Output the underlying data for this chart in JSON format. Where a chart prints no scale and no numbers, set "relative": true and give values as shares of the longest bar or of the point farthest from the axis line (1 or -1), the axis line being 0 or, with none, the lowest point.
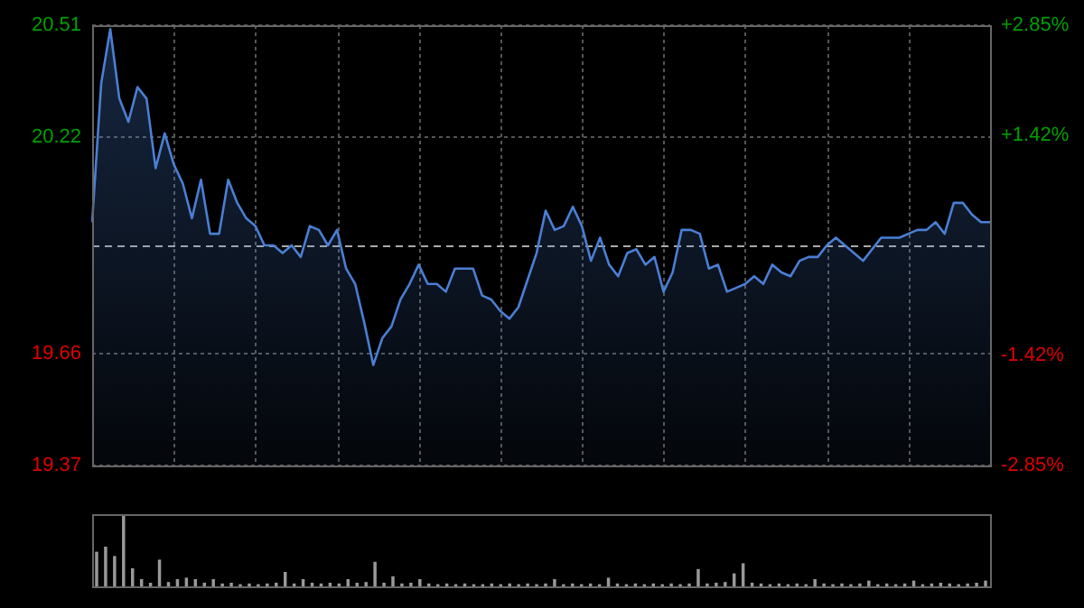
{
  "chart_data": [
    {
      "type": "area",
      "categories": [
        null,
        null,
        null,
        null,
        null,
        null,
        null,
        null,
        null,
        null,
        null,
        null,
        null,
        null,
        null,
        null,
        null,
        null,
        null,
        null,
        null,
        null,
        null,
        null,
        null,
        null,
        null,
        null,
        null,
        null,
        null,
        null,
        null,
        null,
        null,
        null,
        null,
        null,
        null,
        null,
        null,
        null,
        null,
        null,
        null,
        null,
        null,
        null,
        null,
        null,
        null,
        null,
        null,
        null,
        null,
        null,
        null,
        null,
        null,
        null,
        null,
        null,
        null,
        null,
        null,
        null,
        null,
        null,
        null,
        null,
        null,
        null,
        null,
        null,
        null,
        null,
        null,
        null,
        null,
        null,
        null,
        null,
        null,
        null,
        null,
        null,
        null,
        null,
        null,
        null,
        null,
        null,
        null,
        null,
        null,
        null,
        null,
        null,
        null,
        null
      ],
      "series": [
        {
          "color": "#4a7fd4",
          "values": [
            20.0,
            20.36,
            20.5,
            20.32,
            20.26,
            20.35,
            20.32,
            20.14,
            20.23,
            20.15,
            20.1,
            20.01,
            20.11,
            19.97,
            19.97,
            20.11,
            20.05,
            20.01,
            19.99,
            19.94,
            19.94,
            19.92,
            19.94,
            19.91,
            19.99,
            19.98,
            19.94,
            19.98,
            19.88,
            19.84,
            19.74,
            19.63,
            19.7,
            19.73,
            19.8,
            19.84,
            19.89,
            19.84,
            19.84,
            19.82,
            19.88,
            19.88,
            19.88,
            19.81,
            19.8,
            19.77,
            19.75,
            19.78,
            19.85,
            19.92,
            20.03,
            19.98,
            19.99,
            20.04,
            19.99,
            19.9,
            19.96,
            19.89,
            19.86,
            19.92,
            19.93,
            19.89,
            19.91,
            19.82,
            19.87,
            19.98,
            19.98,
            19.97,
            19.88,
            19.89,
            19.82,
            19.83,
            19.84,
            19.86,
            19.84,
            19.89,
            19.87,
            19.86,
            19.9,
            19.91,
            19.91,
            19.94,
            19.96,
            19.94,
            19.92,
            19.9,
            19.93,
            19.96,
            19.96,
            19.96,
            19.97,
            19.98,
            19.98,
            20.0,
            19.97,
            20.05,
            20.05,
            20.02,
            20.0,
            20.0
          ]
        }
      ],
      "ylim": [
        19.37,
        20.51
      ],
      "yticks": [
        19.37,
        19.66,
        20.22,
        20.51
      ],
      "y2lim": [
        -2.85,
        2.85
      ],
      "y2ticks": [
        {
          "value": -2.85,
          "label": "-2.85%"
        },
        {
          "value": -1.42,
          "label": "-1.42%"
        },
        {
          "value": 1.42,
          "label": "+1.42%"
        },
        {
          "value": 2.85,
          "label": "+2.85%"
        }
      ],
      "ref_lines": [
        {
          "axis": "y",
          "value": 19.94,
          "color": "#aaaaaa",
          "line_style": "dashed"
        }
      ],
      "grid": true,
      "legend": false
    },
    {
      "type": "bar",
      "relative": true,
      "categories": [
        null,
        null,
        null,
        null,
        null,
        null,
        null,
        null,
        null,
        null,
        null,
        null,
        null,
        null,
        null,
        null,
        null,
        null,
        null,
        null,
        null,
        null,
        null,
        null,
        null,
        null,
        null,
        null,
        null,
        null,
        null,
        null,
        null,
        null,
        null,
        null,
        null,
        null,
        null,
        null,
        null,
        null,
        null,
        null,
        null,
        null,
        null,
        null,
        null,
        null,
        null,
        null,
        null,
        null,
        null,
        null,
        null,
        null,
        null,
        null,
        null,
        null,
        null,
        null,
        null,
        null,
        null,
        null,
        null,
        null,
        null,
        null,
        null,
        null,
        null,
        null,
        null,
        null,
        null,
        null,
        null,
        null,
        null,
        null,
        null,
        null,
        null,
        null,
        null,
        null,
        null,
        null,
        null,
        null,
        null,
        null,
        null,
        null,
        null,
        null
      ],
      "series": [
        {
          "color": "#999999",
          "values": [
            0.48,
            0.55,
            0.42,
            1.0,
            0.25,
            0.1,
            0.05,
            0.37,
            0.06,
            0.1,
            0.12,
            0.1,
            0.05,
            0.1,
            0.04,
            0.05,
            0.03,
            0.04,
            0.03,
            0.04,
            0.05,
            0.2,
            0.04,
            0.1,
            0.05,
            0.04,
            0.05,
            0.04,
            0.1,
            0.05,
            0.06,
            0.34,
            0.05,
            0.14,
            0.04,
            0.05,
            0.1,
            0.04,
            0.03,
            0.04,
            0.03,
            0.04,
            0.03,
            0.03,
            0.04,
            0.03,
            0.04,
            0.03,
            0.04,
            0.03,
            0.04,
            0.1,
            0.03,
            0.04,
            0.03,
            0.04,
            0.03,
            0.12,
            0.04,
            0.03,
            0.04,
            0.03,
            0.04,
            0.03,
            0.04,
            0.03,
            0.04,
            0.24,
            0.04,
            0.05,
            0.06,
            0.18,
            0.32,
            0.05,
            0.04,
            0.03,
            0.04,
            0.03,
            0.04,
            0.03,
            0.1,
            0.04,
            0.03,
            0.04,
            0.03,
            0.04,
            0.08,
            0.03,
            0.04,
            0.03,
            0.04,
            0.08,
            0.03,
            0.04,
            0.05,
            0.04,
            0.03,
            0.04,
            0.05,
            0.08
          ]
        }
      ],
      "grid": false,
      "legend": false
    }
  ]
}
